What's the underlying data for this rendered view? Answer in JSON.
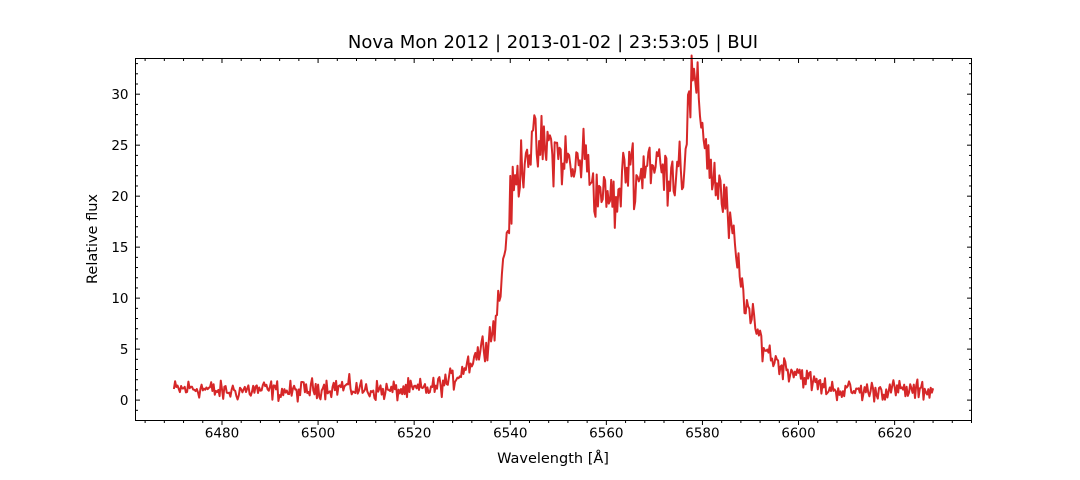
{
  "chart_data": {
    "type": "line",
    "title": "Nova Mon 2012 | 2013-01-02 | 23:53:05 | BUI",
    "xlabel": "Wavelength [Å]",
    "ylabel": "Relative flux",
    "xlim": [
      6462,
      6636
    ],
    "ylim": [
      -2,
      33.5
    ],
    "xticks": [
      6480,
      6500,
      6520,
      6540,
      6560,
      6580,
      6600,
      6620
    ],
    "yticks": [
      0,
      5,
      10,
      15,
      20,
      25,
      30
    ],
    "x_minor_step": 4,
    "y_minor_step": 1,
    "grid": false,
    "legend": "none",
    "series": [
      {
        "color": "#d62728",
        "x": [
          6470,
          6475,
          6480,
          6485,
          6490,
          6495,
          6500,
          6505,
          6510,
          6515,
          6520,
          6524,
          6528,
          6531,
          6534,
          6536,
          6537,
          6538,
          6539,
          6540,
          6541,
          6542,
          6543,
          6544,
          6546,
          6548,
          6550,
          6552,
          6553,
          6555,
          6556,
          6557,
          6558,
          6559,
          6560,
          6561,
          6562,
          6563,
          6564,
          6565,
          6566,
          6567,
          6568,
          6569,
          6570,
          6571,
          6572,
          6573,
          6574,
          6575,
          6576,
          6577,
          6578,
          6579,
          6580,
          6581,
          6582,
          6583,
          6584,
          6585,
          6586,
          6587,
          6588,
          6590,
          6592,
          6594,
          6596,
          6598,
          6600,
          6602,
          6605,
          6608,
          6612,
          6616,
          6620,
          6624,
          6628
        ],
        "y": [
          1.0,
          1.2,
          0.8,
          1.0,
          1.0,
          0.8,
          1.2,
          1.3,
          1.0,
          0.9,
          1.0,
          1.2,
          2.0,
          3.5,
          5.0,
          6.5,
          8.0,
          11.0,
          15.5,
          19.0,
          21.0,
          22.5,
          24.5,
          25.0,
          24.5,
          25.0,
          24.0,
          23.5,
          22.0,
          24.5,
          23.0,
          22.0,
          20.0,
          21.0,
          19.0,
          20.5,
          18.5,
          21.0,
          22.5,
          24.0,
          22.0,
          21.5,
          23.5,
          24.0,
          22.0,
          24.0,
          21.5,
          23.0,
          22.0,
          24.0,
          22.5,
          28.0,
          31.5,
          29.0,
          27.5,
          24.5,
          22.0,
          21.5,
          20.0,
          18.5,
          16.5,
          14.0,
          11.5,
          8.0,
          6.0,
          4.5,
          3.5,
          3.0,
          2.8,
          2.0,
          1.3,
          1.0,
          0.9,
          0.9,
          1.0,
          0.9,
          1.0
        ]
      }
    ]
  }
}
